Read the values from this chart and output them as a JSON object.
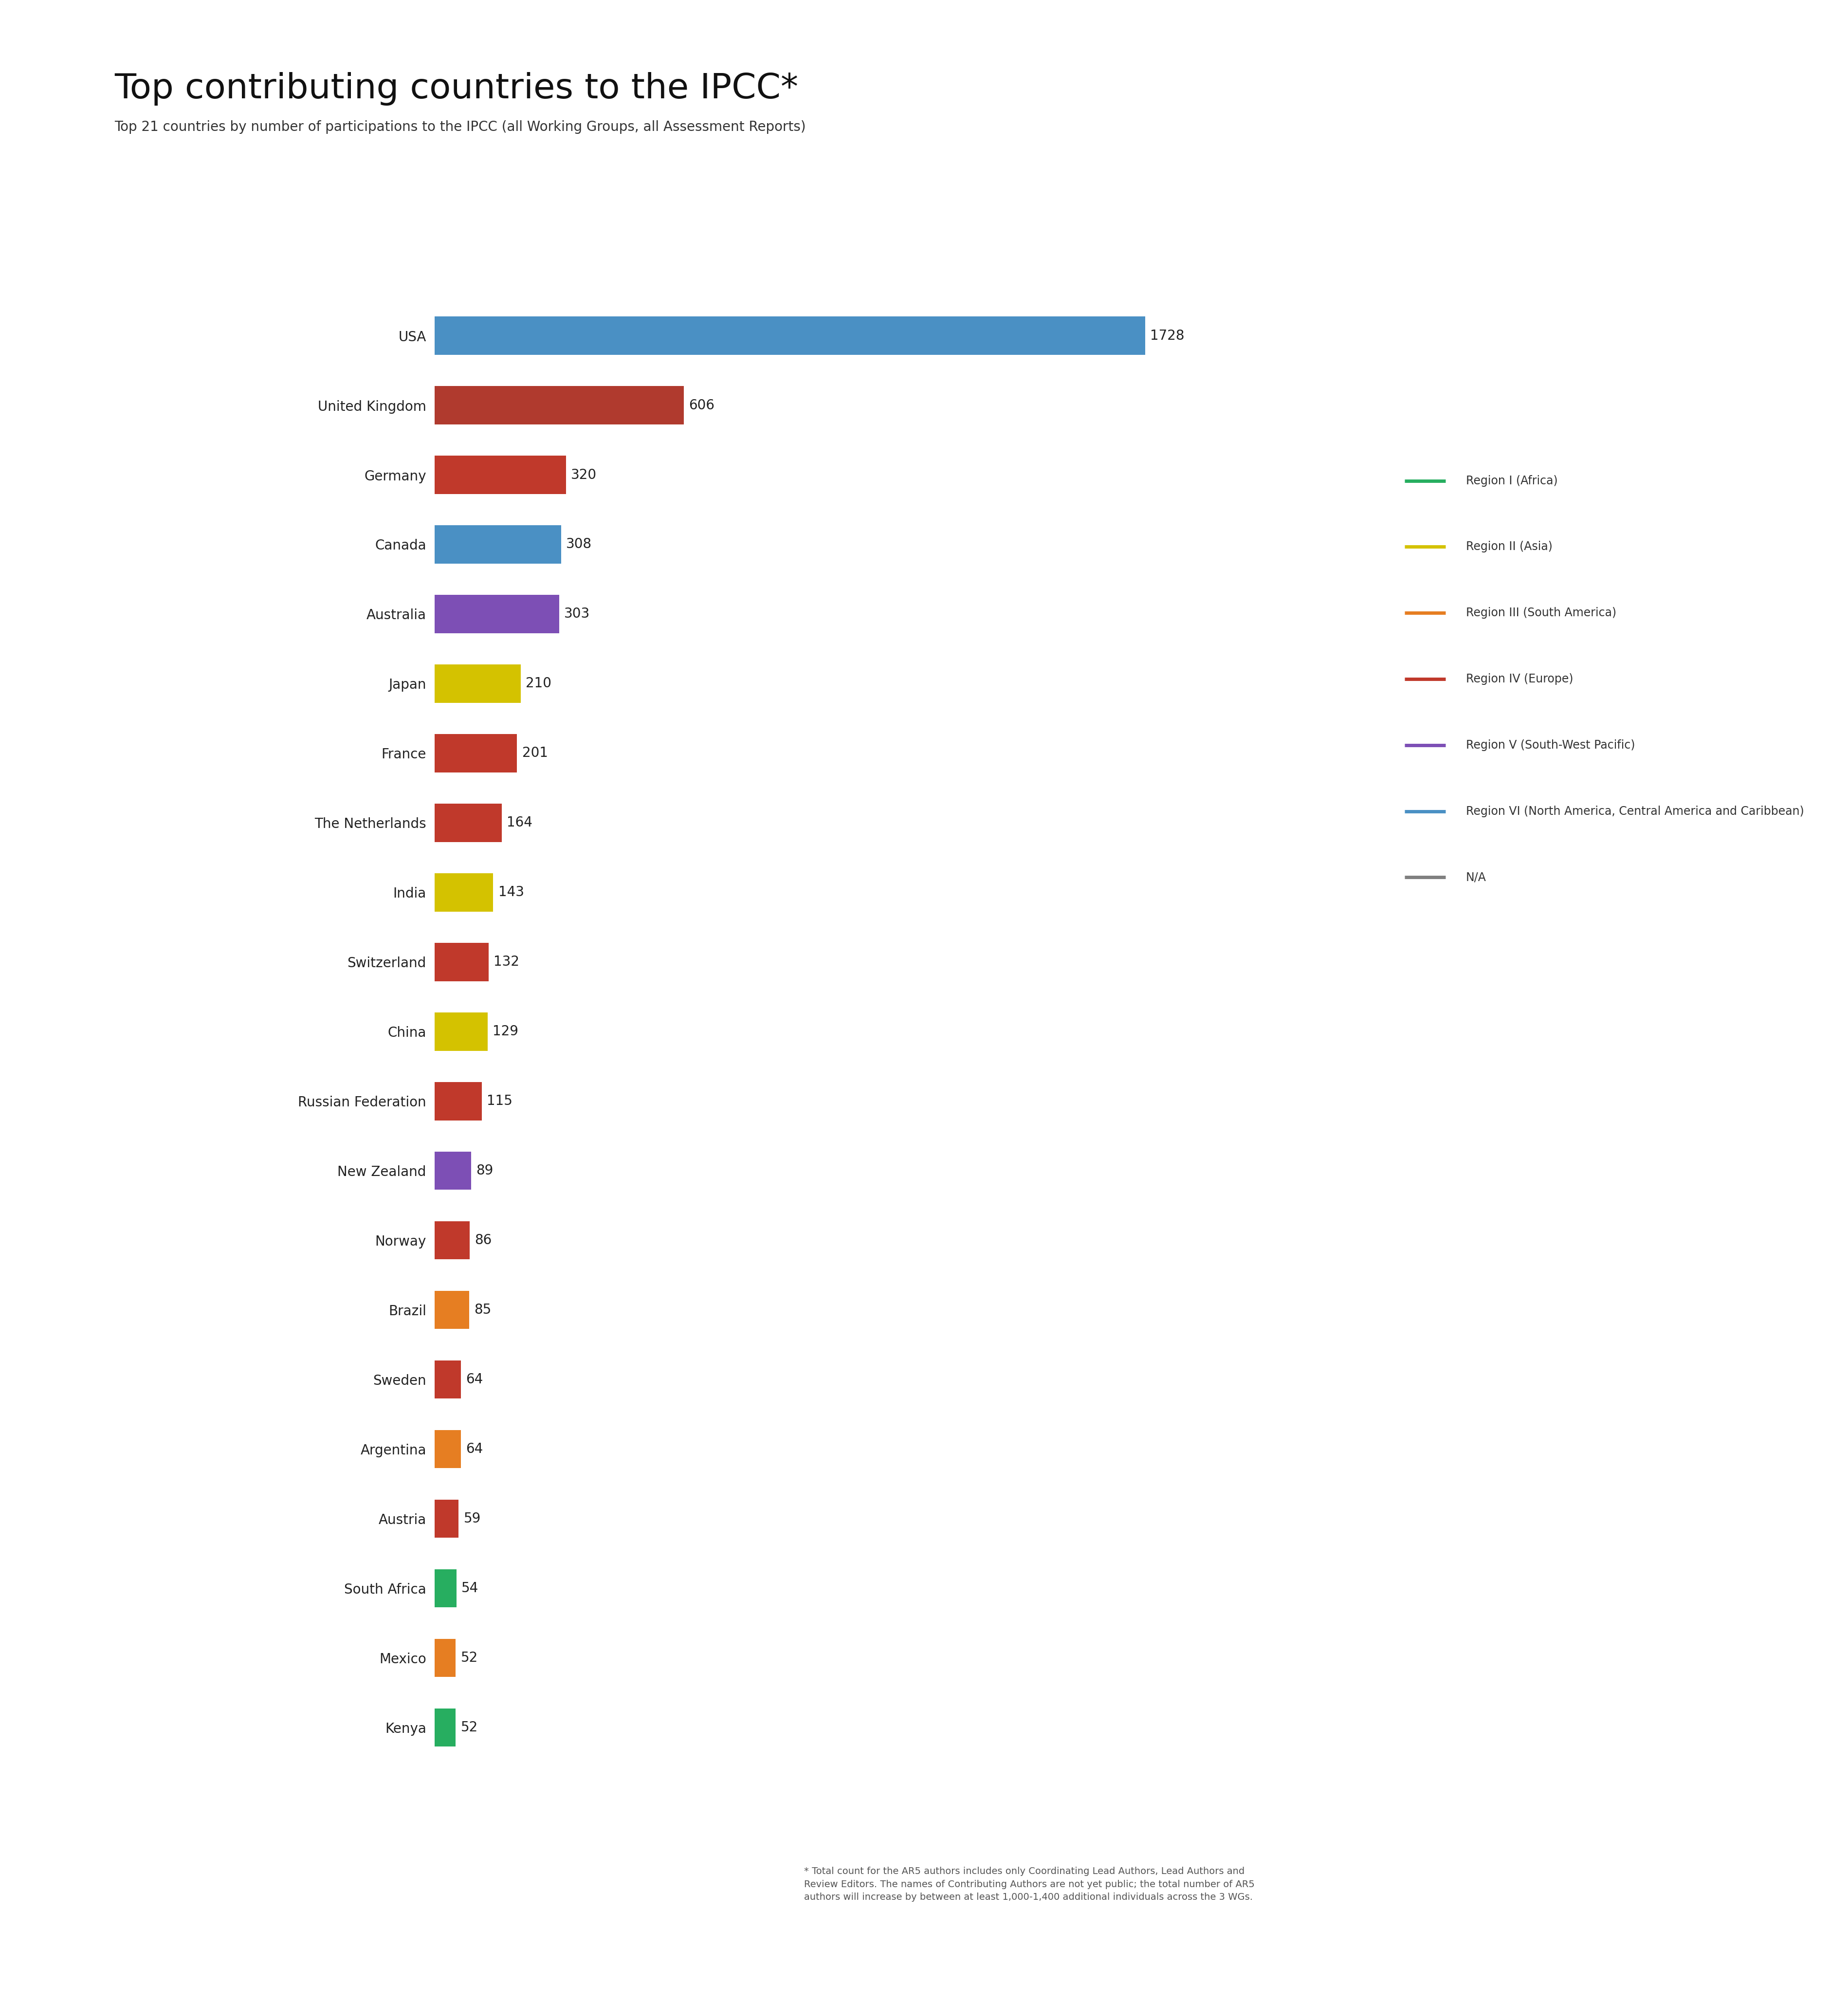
{
  "title": "Top contributing countries to the IPCC*",
  "subtitle": "Top 21 countries by number of participations to the IPCC (all Working Groups, all Assessment Reports)",
  "countries": [
    "USA",
    "United Kingdom",
    "Germany",
    "Canada",
    "Australia",
    "Japan",
    "France",
    "The Netherlands",
    "India",
    "Switzerland",
    "China",
    "Russian Federation",
    "New Zealand",
    "Norway",
    "Brazil",
    "Sweden",
    "Argentina",
    "Austria",
    "South Africa",
    "Mexico",
    "Kenya"
  ],
  "values": [
    1728,
    606,
    320,
    308,
    303,
    210,
    201,
    164,
    143,
    132,
    129,
    115,
    89,
    86,
    85,
    64,
    64,
    59,
    54,
    52,
    52
  ],
  "colors": [
    "#4a90c4",
    "#b03a2e",
    "#c0392b",
    "#4a90c4",
    "#7d4fb5",
    "#d4c200",
    "#c0392b",
    "#c0392b",
    "#d4c200",
    "#c0392b",
    "#d4c200",
    "#c0392b",
    "#7d4fb5",
    "#c0392b",
    "#e67e22",
    "#c0392b",
    "#e67e22",
    "#c0392b",
    "#27ae60",
    "#e67e22",
    "#27ae60"
  ],
  "legend_entries": [
    {
      "label": "Region I (Africa)",
      "color": "#27ae60"
    },
    {
      "label": "Region II (Asia)",
      "color": "#d4c200"
    },
    {
      "label": "Region III (South America)",
      "color": "#e67e22"
    },
    {
      "label": "Region IV (Europe)",
      "color": "#c0392b"
    },
    {
      "label": "Region V (South-West Pacific)",
      "color": "#7d4fb5"
    },
    {
      "label": "Region VI (North America, Central America and Caribbean)",
      "color": "#4a90c4"
    },
    {
      "label": "N/A",
      "color": "#808080"
    }
  ],
  "footnote_line1": "* Total count for the AR5 authors includes only Coordinating Lead Authors, Lead Authors and",
  "footnote_line2": "Review Editors. The names of Contributing Authors are not yet public; the total number of AR5",
  "footnote_line3": "authors will increase by between at least 1,000-1,400 additional individuals across the 3 WGs.",
  "background_color": "#ffffff",
  "title_fontsize": 52,
  "subtitle_fontsize": 20,
  "bar_label_fontsize": 20,
  "country_label_fontsize": 20,
  "legend_fontsize": 17,
  "footnote_fontsize": 14
}
